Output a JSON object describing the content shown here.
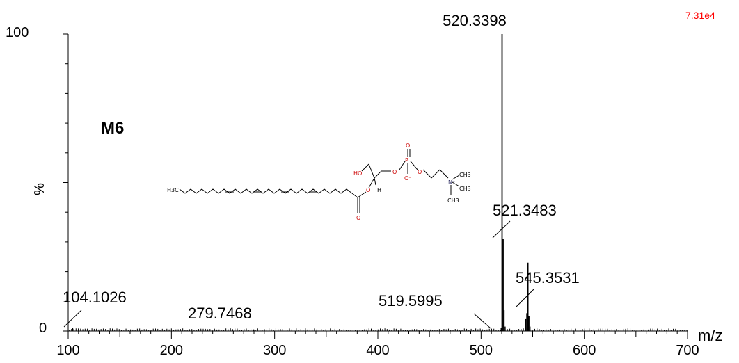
{
  "chart_data": {
    "type": "bar",
    "title": "",
    "xlabel": "m/z",
    "ylabel": "%",
    "xlim": [
      100,
      700
    ],
    "ylim": [
      0,
      100
    ],
    "x_ticks": [
      "100",
      "200",
      "300",
      "400",
      "500",
      "600",
      "700"
    ],
    "y_ticks": [
      "0",
      "100"
    ],
    "intensity_scale": "7.31e4",
    "intensity_color": "#ff0000",
    "compound_label": "M6",
    "peaks": [
      {
        "mz": 520.3398,
        "intensity": 100,
        "label": "520.3398"
      },
      {
        "mz": 521.3483,
        "intensity": 31,
        "label": "521.3483"
      },
      {
        "mz": 545.3531,
        "intensity": 23,
        "label": "545.3531"
      },
      {
        "mz": 519.5995,
        "intensity": 1,
        "label": "519.5995"
      },
      {
        "mz": 104.1026,
        "intensity": 1,
        "label": "104.1026"
      },
      {
        "mz": 279.7468,
        "intensity": 0.5,
        "label": "279.7468"
      }
    ],
    "minor_peaks": [
      {
        "mz": 522.3,
        "intensity": 7
      },
      {
        "mz": 523.3,
        "intensity": 1.5
      },
      {
        "mz": 543.3,
        "intensity": 4
      },
      {
        "mz": 544.3,
        "intensity": 6
      },
      {
        "mz": 546.4,
        "intensity": 5
      },
      {
        "mz": 547.4,
        "intensity": 1.5
      }
    ],
    "structure": {
      "labels": {
        "h3c": "H3C",
        "ho": "HO",
        "h": "H",
        "o_ester": "O",
        "o_carbonyl": "O",
        "o_link": "O",
        "p": "P",
        "o_top": "O",
        "o_minus": "O⁻",
        "o_right": "O",
        "n_plus": "N⁺",
        "ch3_a": "CH3",
        "ch3_b": "CH3",
        "ch3_c": "CH3"
      },
      "bond_color": "#000000",
      "heteroatom_color": "#cc0000",
      "nitrogen_color": "#333366"
    }
  }
}
